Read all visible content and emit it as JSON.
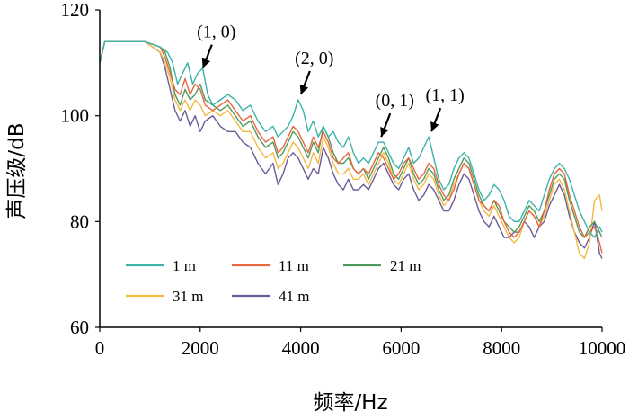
{
  "chart_data": {
    "type": "line",
    "title": "",
    "xlabel": "频率/Hz",
    "ylabel": "声压级/dB",
    "xlim": [
      0,
      10000
    ],
    "ylim": [
      60,
      120
    ],
    "xticks": [
      0,
      2000,
      4000,
      6000,
      8000,
      10000
    ],
    "yticks": [
      60,
      80,
      100,
      120
    ],
    "grid": false,
    "legend_position": "lower-left",
    "series": [
      {
        "name": "1 m",
        "color": "#3bb3a8",
        "x": [
          0,
          100,
          300,
          600,
          900,
          1200,
          1350,
          1450,
          1550,
          1650,
          1750,
          1850,
          1950,
          2050,
          2150,
          2250,
          2400,
          2550,
          2700,
          2850,
          3000,
          3150,
          3300,
          3450,
          3550,
          3650,
          3750,
          3850,
          3950,
          4050,
          4150,
          4250,
          4350,
          4450,
          4550,
          4650,
          4750,
          4850,
          4950,
          5050,
          5150,
          5250,
          5350,
          5450,
          5550,
          5650,
          5750,
          5850,
          5950,
          6050,
          6150,
          6250,
          6350,
          6450,
          6550,
          6650,
          6750,
          6850,
          6950,
          7050,
          7150,
          7250,
          7350,
          7450,
          7550,
          7650,
          7750,
          7850,
          7950,
          8050,
          8150,
          8250,
          8350,
          8450,
          8550,
          8650,
          8750,
          8850,
          8950,
          9050,
          9150,
          9250,
          9350,
          9450,
          9550,
          9650,
          9750,
          9850,
          9950,
          10000
        ],
        "y": [
          110,
          114,
          114,
          114,
          114,
          113,
          112,
          110,
          106,
          108,
          110,
          106,
          108,
          109,
          104,
          102,
          103,
          104,
          103,
          101,
          102,
          99,
          97,
          98,
          96,
          97,
          98,
          100,
          103,
          101,
          97,
          99,
          96,
          98,
          96,
          97,
          95,
          94,
          96,
          93,
          91,
          92,
          91,
          93,
          95,
          95,
          93,
          91,
          90,
          92,
          94,
          91,
          92,
          94,
          96,
          92,
          88,
          86,
          87,
          90,
          92,
          93,
          92,
          89,
          86,
          84,
          85,
          87,
          86,
          84,
          81,
          80,
          80,
          82,
          84,
          83,
          82,
          85,
          88,
          90,
          91,
          90,
          88,
          85,
          82,
          80,
          78,
          77,
          79,
          78
        ]
      },
      {
        "name": "11 m",
        "color": "#e8663d",
        "x": [
          0,
          100,
          300,
          600,
          900,
          1200,
          1300,
          1400,
          1500,
          1600,
          1700,
          1800,
          1900,
          2000,
          2100,
          2250,
          2400,
          2550,
          2700,
          2850,
          3000,
          3150,
          3300,
          3450,
          3550,
          3650,
          3750,
          3850,
          3950,
          4050,
          4150,
          4250,
          4350,
          4450,
          4550,
          4650,
          4750,
          4850,
          4950,
          5050,
          5150,
          5250,
          5350,
          5450,
          5550,
          5650,
          5750,
          5850,
          5950,
          6050,
          6150,
          6250,
          6350,
          6450,
          6550,
          6650,
          6750,
          6850,
          6950,
          7050,
          7150,
          7250,
          7350,
          7450,
          7550,
          7650,
          7750,
          7850,
          7950,
          8050,
          8150,
          8250,
          8350,
          8450,
          8550,
          8650,
          8750,
          8850,
          8950,
          9050,
          9150,
          9250,
          9350,
          9450,
          9550,
          9650,
          9750,
          9850,
          9950,
          10000
        ],
        "y": [
          110,
          114,
          114,
          114,
          114,
          113,
          111,
          108,
          105,
          104,
          107,
          104,
          106,
          105,
          102,
          101,
          102,
          103,
          101,
          99,
          100,
          97,
          95,
          96,
          93,
          94,
          96,
          98,
          97,
          95,
          93,
          96,
          94,
          97,
          95,
          92,
          91,
          92,
          93,
          90,
          89,
          90,
          89,
          91,
          93,
          92,
          90,
          88,
          89,
          91,
          92,
          90,
          88,
          89,
          91,
          90,
          87,
          85,
          84,
          86,
          89,
          91,
          90,
          87,
          84,
          83,
          82,
          84,
          83,
          80,
          78,
          77,
          78,
          80,
          82,
          81,
          79,
          82,
          86,
          89,
          90,
          89,
          85,
          82,
          79,
          77,
          78,
          79,
          76,
          74
        ]
      },
      {
        "name": "21 m",
        "color": "#4f9a5e",
        "x": [
          0,
          100,
          300,
          600,
          900,
          1200,
          1300,
          1400,
          1500,
          1600,
          1700,
          1800,
          1900,
          2000,
          2100,
          2250,
          2400,
          2550,
          2700,
          2850,
          3000,
          3150,
          3300,
          3450,
          3550,
          3650,
          3750,
          3850,
          3950,
          4050,
          4150,
          4250,
          4350,
          4450,
          4550,
          4650,
          4750,
          4850,
          4950,
          5050,
          5150,
          5250,
          5350,
          5450,
          5550,
          5650,
          5750,
          5850,
          5950,
          6050,
          6150,
          6250,
          6350,
          6450,
          6550,
          6650,
          6750,
          6850,
          6950,
          7050,
          7150,
          7250,
          7350,
          7450,
          7550,
          7650,
          7750,
          7850,
          7950,
          8050,
          8150,
          8250,
          8350,
          8450,
          8550,
          8650,
          8750,
          8850,
          8950,
          9050,
          9150,
          9250,
          9350,
          9450,
          9550,
          9650,
          9750,
          9850,
          9950,
          10000
        ],
        "y": [
          110,
          114,
          114,
          114,
          114,
          113,
          112,
          109,
          104,
          102,
          105,
          103,
          104,
          106,
          103,
          102,
          101,
          102,
          100,
          98,
          99,
          96,
          94,
          95,
          92,
          93,
          95,
          97,
          96,
          94,
          92,
          95,
          93,
          98,
          96,
          93,
          91,
          91,
          92,
          90,
          89,
          90,
          88,
          90,
          92,
          94,
          92,
          89,
          88,
          90,
          92,
          89,
          87,
          88,
          90,
          89,
          86,
          84,
          85,
          88,
          90,
          92,
          91,
          88,
          85,
          83,
          82,
          84,
          82,
          80,
          79,
          78,
          79,
          81,
          83,
          82,
          80,
          82,
          85,
          88,
          89,
          88,
          84,
          81,
          78,
          77,
          79,
          80,
          78,
          77
        ]
      },
      {
        "name": "31 m",
        "color": "#f4b942",
        "x": [
          0,
          100,
          300,
          600,
          900,
          1200,
          1300,
          1400,
          1500,
          1600,
          1700,
          1800,
          1900,
          2000,
          2100,
          2250,
          2400,
          2550,
          2700,
          2850,
          3000,
          3150,
          3300,
          3450,
          3550,
          3650,
          3750,
          3850,
          3950,
          4050,
          4150,
          4250,
          4350,
          4450,
          4550,
          4650,
          4750,
          4850,
          4950,
          5050,
          5150,
          5250,
          5350,
          5450,
          5550,
          5650,
          5750,
          5850,
          5950,
          6050,
          6150,
          6250,
          6350,
          6450,
          6550,
          6650,
          6750,
          6850,
          6950,
          7050,
          7150,
          7250,
          7350,
          7450,
          7550,
          7650,
          7750,
          7850,
          7950,
          8050,
          8150,
          8250,
          8350,
          8450,
          8550,
          8650,
          8750,
          8850,
          8950,
          9050,
          9150,
          9250,
          9350,
          9450,
          9550,
          9650,
          9750,
          9850,
          9950,
          10000
        ],
        "y": [
          110,
          114,
          114,
          114,
          114,
          112,
          110,
          107,
          103,
          101,
          103,
          101,
          103,
          102,
          100,
          101,
          100,
          101,
          99,
          97,
          97,
          94,
          92,
          93,
          90,
          91,
          93,
          95,
          94,
          92,
          90,
          93,
          91,
          96,
          94,
          91,
          89,
          89,
          90,
          88,
          88,
          89,
          87,
          89,
          91,
          93,
          91,
          88,
          87,
          89,
          91,
          88,
          86,
          87,
          89,
          88,
          85,
          83,
          84,
          87,
          89,
          91,
          90,
          87,
          84,
          82,
          81,
          83,
          81,
          79,
          77,
          76,
          77,
          80,
          82,
          81,
          79,
          81,
          84,
          87,
          88,
          86,
          82,
          78,
          74,
          73,
          76,
          84,
          85,
          82
        ]
      },
      {
        "name": "41 m",
        "color": "#6a5a9a",
        "x": [
          0,
          100,
          300,
          600,
          900,
          1200,
          1300,
          1400,
          1500,
          1600,
          1700,
          1800,
          1900,
          2000,
          2100,
          2250,
          2400,
          2550,
          2700,
          2850,
          3000,
          3150,
          3300,
          3450,
          3550,
          3650,
          3750,
          3850,
          3950,
          4050,
          4150,
          4250,
          4350,
          4450,
          4550,
          4650,
          4750,
          4850,
          4950,
          5050,
          5150,
          5250,
          5350,
          5450,
          5550,
          5650,
          5750,
          5850,
          5950,
          6050,
          6150,
          6250,
          6350,
          6450,
          6550,
          6650,
          6750,
          6850,
          6950,
          7050,
          7150,
          7250,
          7350,
          7450,
          7550,
          7650,
          7750,
          7850,
          7950,
          8050,
          8150,
          8250,
          8350,
          8450,
          8550,
          8650,
          8750,
          8850,
          8950,
          9050,
          9150,
          9250,
          9350,
          9450,
          9550,
          9650,
          9750,
          9850,
          9950,
          10000
        ],
        "y": [
          110,
          114,
          114,
          114,
          114,
          112,
          109,
          105,
          101,
          99,
          101,
          98,
          100,
          97,
          99,
          100,
          98,
          97,
          97,
          95,
          94,
          91,
          89,
          91,
          87,
          89,
          92,
          93,
          92,
          90,
          88,
          90,
          89,
          94,
          92,
          89,
          87,
          86,
          88,
          86,
          86,
          87,
          86,
          88,
          90,
          91,
          89,
          87,
          86,
          88,
          89,
          86,
          84,
          85,
          87,
          86,
          84,
          82,
          82,
          84,
          87,
          89,
          88,
          85,
          82,
          80,
          79,
          81,
          79,
          77,
          77,
          78,
          78,
          80,
          79,
          77,
          79,
          80,
          83,
          85,
          87,
          85,
          81,
          78,
          76,
          75,
          77,
          80,
          74,
          73
        ]
      }
    ],
    "annotations": [
      {
        "text": "(1, 0)",
        "x": 2000,
        "y": 108
      },
      {
        "text": "(2, 0)",
        "x": 3950,
        "y": 103
      },
      {
        "text": "(0, 1)",
        "x": 5550,
        "y": 95
      },
      {
        "text": "(1, 1)",
        "x": 6550,
        "y": 96
      }
    ]
  }
}
